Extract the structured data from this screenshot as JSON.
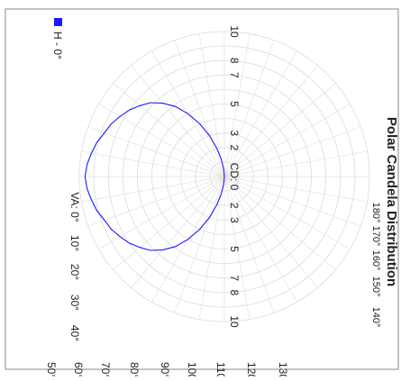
{
  "chart_data": {
    "type": "polar",
    "title": "Polar Candela Distribution",
    "candela_label": "CD: 0",
    "ring_labels": [
      "2",
      "3",
      "5",
      "7",
      "8",
      "10"
    ],
    "angle_labels_top": [
      "180°",
      "170°",
      "160°",
      "150°",
      "140°"
    ],
    "angle_labels_bottom": [
      "VA: 0°",
      "10°",
      "20°",
      "30°",
      "40°"
    ],
    "angle_labels_side": [
      "50°",
      "60°",
      "70°",
      "80°",
      "90°",
      "100°",
      "110°",
      "120°",
      "130°"
    ],
    "legend": {
      "position": "bottom-left",
      "entries": [
        {
          "name": "H - 0°",
          "color": "#1a1aff"
        }
      ]
    },
    "series": [
      {
        "name": "H - 0°",
        "color": "#1a1aff",
        "curve": [
          [
            0,
            9.6
          ],
          [
            5,
            9.5
          ],
          [
            10,
            9.3
          ],
          [
            15,
            9.1
          ],
          [
            20,
            8.8
          ],
          [
            25,
            8.6
          ],
          [
            30,
            8.3
          ],
          [
            35,
            8.0
          ],
          [
            40,
            7.6
          ],
          [
            45,
            7.2
          ],
          [
            50,
            6.6
          ],
          [
            55,
            5.9
          ],
          [
            60,
            5.0
          ],
          [
            65,
            4.0
          ],
          [
            70,
            3.0
          ],
          [
            75,
            2.0
          ],
          [
            80,
            1.2
          ],
          [
            85,
            0.5
          ],
          [
            90,
            0.0
          ]
        ]
      }
    ]
  }
}
